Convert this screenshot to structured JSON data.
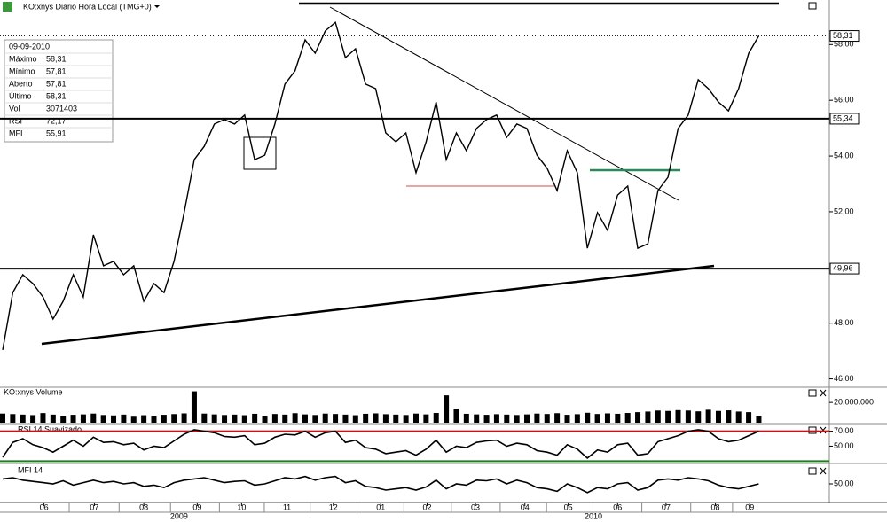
{
  "chart_data": [
    {
      "type": "line",
      "title": "KO:xnys Diário Hora Local (TMG+0)",
      "color": "#000000",
      "values": [
        47.04,
        49.1,
        49.74,
        49.42,
        48.94,
        48.15,
        48.79,
        49.74,
        48.94,
        51.17,
        50.06,
        50.22,
        49.74,
        50.06,
        48.79,
        49.42,
        49.1,
        50.22,
        51.97,
        53.87,
        54.35,
        55.15,
        55.31,
        55.15,
        55.47,
        53.87,
        54.03,
        55.15,
        56.58,
        57.06,
        58.17,
        57.69,
        58.49,
        58.8,
        57.53,
        57.85,
        56.58,
        56.42,
        54.83,
        54.51,
        54.83,
        53.4,
        54.51,
        55.94,
        53.87,
        54.83,
        54.19,
        54.99,
        55.31,
        55.47,
        54.67,
        55.15,
        54.99,
        54.03,
        53.56,
        52.76,
        54.19,
        53.4,
        50.69,
        51.97,
        51.33,
        52.6,
        52.92,
        50.69,
        50.85,
        52.76,
        53.24,
        54.99,
        55.47,
        56.74,
        56.42,
        55.94,
        55.62,
        56.42,
        57.69,
        58.31
      ],
      "xlim": [
        0,
        82
      ],
      "xticks": [
        {
          "value": 4.1,
          "label": "06"
        },
        {
          "value": 9.1,
          "label": "07"
        },
        {
          "value": 14,
          "label": "08"
        },
        {
          "value": 19.3,
          "label": "09"
        },
        {
          "value": 23.7,
          "label": "10"
        },
        {
          "value": 28.2,
          "label": "11"
        },
        {
          "value": 32.8,
          "label": "12"
        },
        {
          "value": 37.5,
          "label": "01"
        },
        {
          "value": 42.1,
          "label": "02"
        },
        {
          "value": 46.9,
          "label": "03"
        },
        {
          "value": 51.8,
          "label": "04"
        },
        {
          "value": 56.1,
          "label": "05"
        },
        {
          "value": 61,
          "label": "06"
        },
        {
          "value": 65.8,
          "label": "07"
        },
        {
          "value": 70.7,
          "label": "08"
        },
        {
          "value": 74.1,
          "label": "09"
        }
      ],
      "year_ticks": [
        {
          "value": 17.5,
          "label": "2009"
        },
        {
          "value": 58.6,
          "label": "2010"
        }
      ],
      "ylim": [
        45.7,
        59.6
      ],
      "yticks": [
        {
          "value": 58,
          "label": "58,00"
        },
        {
          "value": 56,
          "label": "56,00"
        },
        {
          "value": 54,
          "label": "54,00"
        },
        {
          "value": 52,
          "label": "52,00"
        },
        {
          "value": 48,
          "label": "48,00"
        },
        {
          "value": 46,
          "label": "46,00"
        }
      ],
      "levels": [
        {
          "value": 58.31,
          "label": "58,31",
          "style": "dotted"
        },
        {
          "value": 55.34,
          "label": "55,34",
          "style": "solid"
        },
        {
          "value": 49.96,
          "label": "49,96",
          "style": "solid"
        }
      ]
    },
    {
      "type": "bar",
      "title": "KO:xnys Volume",
      "color": "#000000",
      "values": [
        9000000,
        8500000,
        8000000,
        7500000,
        9500000,
        8000000,
        7000000,
        7800000,
        8200000,
        9000000,
        7600000,
        7200000,
        8000000,
        6800000,
        7400000,
        7000000,
        7800000,
        8500000,
        9200000,
        31000000,
        9000000,
        8200000,
        7600000,
        8000000,
        7400000,
        8800000,
        7000000,
        8600000,
        8000000,
        9400000,
        8200000,
        7600000,
        9000000,
        8600000,
        8000000,
        7400000,
        8800000,
        9200000,
        8400000,
        8000000,
        7600000,
        9000000,
        8200000,
        9600000,
        27000000,
        14000000,
        8800000,
        8200000,
        7800000,
        8400000,
        8000000,
        7600000,
        8200000,
        9000000,
        8600000,
        9400000,
        7800000,
        8400000,
        9800000,
        8600000,
        9200000,
        8800000,
        9600000,
        10400000,
        11000000,
        12000000,
        11600000,
        12400000,
        12000000,
        11200000,
        12800000,
        11600000,
        12200000,
        11000000,
        10400000,
        7000000
      ],
      "ylim": [
        0,
        35000000
      ],
      "yticks": [
        {
          "value": 20000000,
          "label": "20.000.000"
        }
      ]
    },
    {
      "type": "line",
      "title": "RSI 14 Suavizado",
      "color": "#000000",
      "values": [
        35,
        55,
        60,
        52,
        48,
        42,
        50,
        58,
        50,
        62,
        55,
        56,
        52,
        54,
        45,
        50,
        48,
        57,
        66,
        72,
        70,
        68,
        63,
        62,
        64,
        52,
        54,
        62,
        66,
        65,
        70,
        62,
        68,
        70,
        55,
        58,
        48,
        46,
        40,
        42,
        44,
        38,
        46,
        58,
        42,
        50,
        48,
        55,
        57,
        58,
        50,
        54,
        52,
        44,
        42,
        38,
        52,
        46,
        34,
        45,
        42,
        52,
        54,
        38,
        40,
        56,
        60,
        64,
        70,
        72,
        70,
        60,
        56,
        58,
        64,
        70
      ],
      "ylim": [
        28,
        79
      ],
      "yticks": [
        {
          "value": 70,
          "label": "70,00"
        },
        {
          "value": 50,
          "label": "50,00"
        }
      ],
      "bands": [
        {
          "value": 70,
          "color": "#d01010"
        },
        {
          "value": 30,
          "color": "#208020"
        }
      ]
    },
    {
      "type": "line",
      "title": "MFI 14",
      "color": "#000000",
      "values": [
        58,
        60,
        56,
        54,
        52,
        50,
        55,
        48,
        52,
        56,
        52,
        54,
        50,
        52,
        46,
        48,
        44,
        52,
        56,
        58,
        60,
        56,
        52,
        54,
        55,
        48,
        50,
        55,
        60,
        58,
        62,
        56,
        60,
        62,
        52,
        55,
        46,
        44,
        40,
        42,
        44,
        40,
        45,
        56,
        42,
        50,
        48,
        56,
        55,
        58,
        50,
        56,
        52,
        44,
        42,
        38,
        50,
        44,
        36,
        44,
        42,
        50,
        52,
        40,
        44,
        56,
        58,
        56,
        60,
        58,
        55,
        48,
        44,
        42,
        46,
        50
      ],
      "ylim": [
        20,
        80
      ],
      "yticks": [
        {
          "value": 50,
          "label": "50,00"
        }
      ]
    }
  ],
  "info": {
    "date": "09-09-2010",
    "rows": [
      [
        "Máximo",
        "58,31"
      ],
      [
        "Mínimo",
        "57,81"
      ],
      [
        "Aberto",
        "57,81"
      ],
      [
        "Último",
        "58,31"
      ],
      [
        "Vol",
        "3071403"
      ],
      [
        "RSI",
        "72,17"
      ],
      [
        "MFI",
        "55,91"
      ]
    ]
  }
}
